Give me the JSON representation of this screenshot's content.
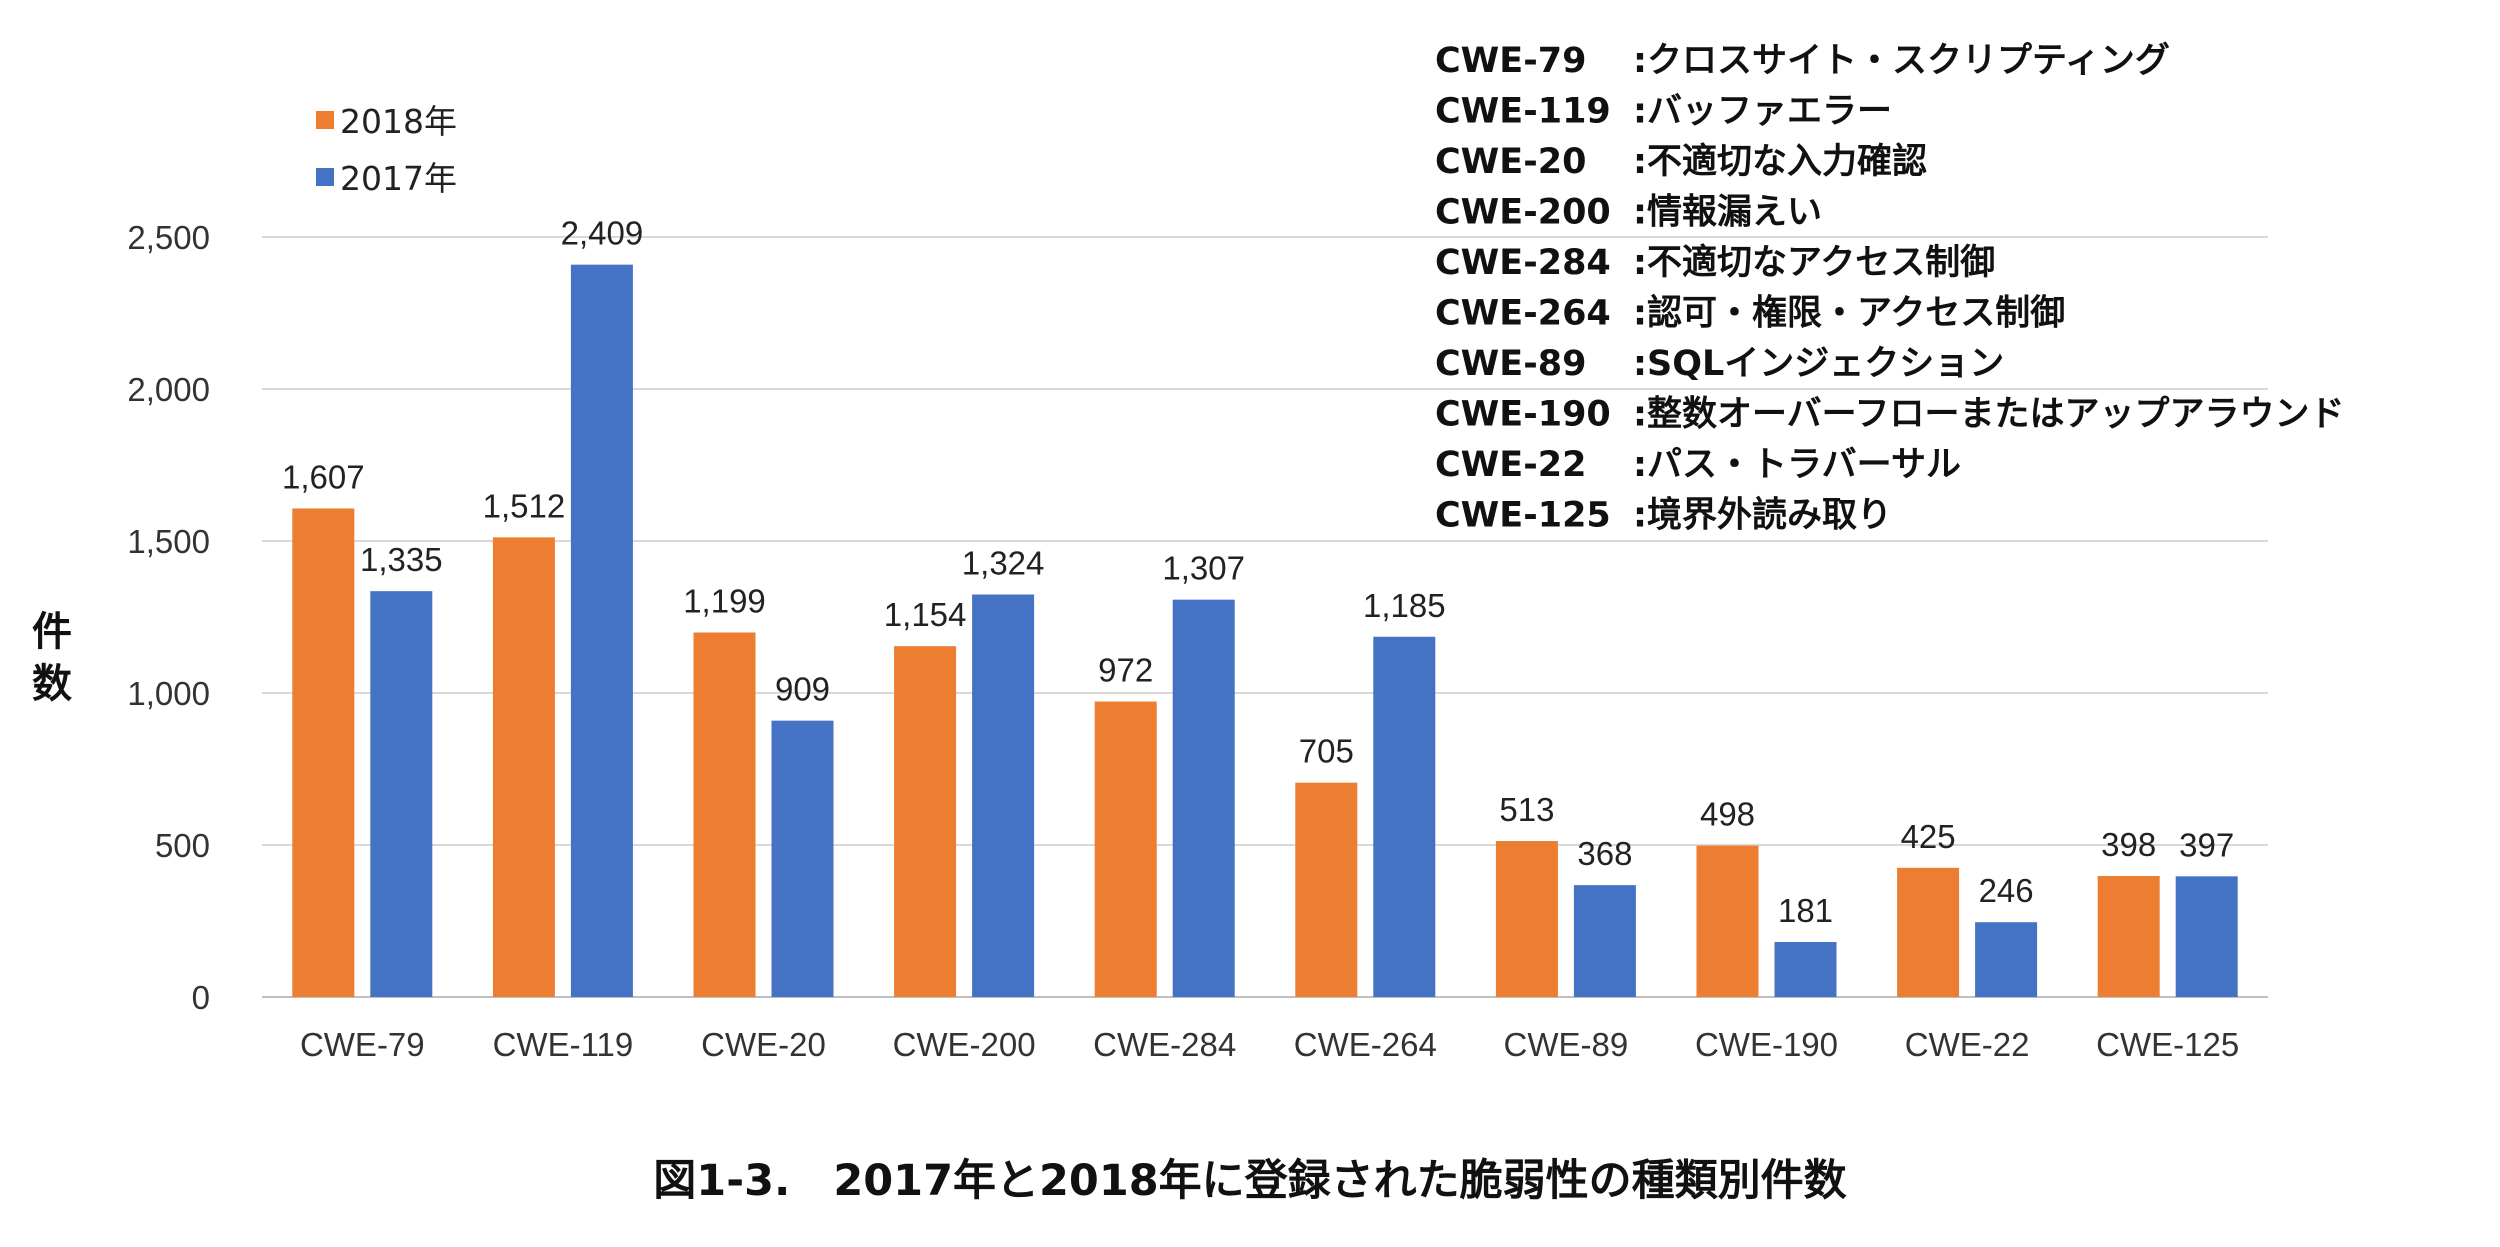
{
  "chart_data": {
    "type": "bar",
    "categories": [
      "CWE-79",
      "CWE-119",
      "CWE-20",
      "CWE-200",
      "CWE-284",
      "CWE-264",
      "CWE-89",
      "CWE-190",
      "CWE-22",
      "CWE-125"
    ],
    "series": [
      {
        "name": "2018年",
        "color": "#ED7D31",
        "values": [
          1607,
          1512,
          1199,
          1154,
          972,
          705,
          513,
          498,
          425,
          398
        ],
        "labels": [
          "1,607",
          "1,512",
          "1,199",
          "1,154",
          "972",
          "705",
          "513",
          "498",
          "425",
          "398"
        ]
      },
      {
        "name": "2017年",
        "color": "#4472C4",
        "values": [
          1335,
          2409,
          909,
          1324,
          1307,
          1185,
          368,
          181,
          246,
          397
        ],
        "labels": [
          "1,335",
          "2,409",
          "909",
          "1,324",
          "1,307",
          "1,185",
          "368",
          "181",
          "246",
          "397"
        ]
      }
    ],
    "ylabel": "件数",
    "xlabel": "",
    "ylim": [
      0,
      2500
    ],
    "yticks": [
      0,
      500,
      1000,
      1500,
      2000,
      2500
    ],
    "ytick_labels": [
      "0",
      "500",
      "1,000",
      "1,500",
      "2,000",
      "2,500"
    ],
    "grid": true,
    "legend_position": "top-left",
    "annotations": [
      {
        "code": "CWE-79",
        "desc": ":クロスサイト・スクリプティング"
      },
      {
        "code": "CWE-119",
        "desc": ":バッファエラー"
      },
      {
        "code": "CWE-20",
        "desc": ":不適切な入力確認"
      },
      {
        "code": "CWE-200",
        "desc": ":情報漏えい"
      },
      {
        "code": "CWE-284",
        "desc": ":不適切なアクセス制御"
      },
      {
        "code": "CWE-264",
        "desc": ":認可・権限・アクセス制御"
      },
      {
        "code": "CWE-89",
        "desc": ":SQLインジェクション"
      },
      {
        "code": "CWE-190",
        "desc": ":整数オーバーフローまたはアップアラウンド"
      },
      {
        "code": "CWE-22",
        "desc": ":パス・トラバーサル"
      },
      {
        "code": "CWE-125",
        "desc": ":境界外読み取り"
      }
    ],
    "caption": "図1-3.　2017年と2018年に登録された脆弱性の種類別件数"
  }
}
